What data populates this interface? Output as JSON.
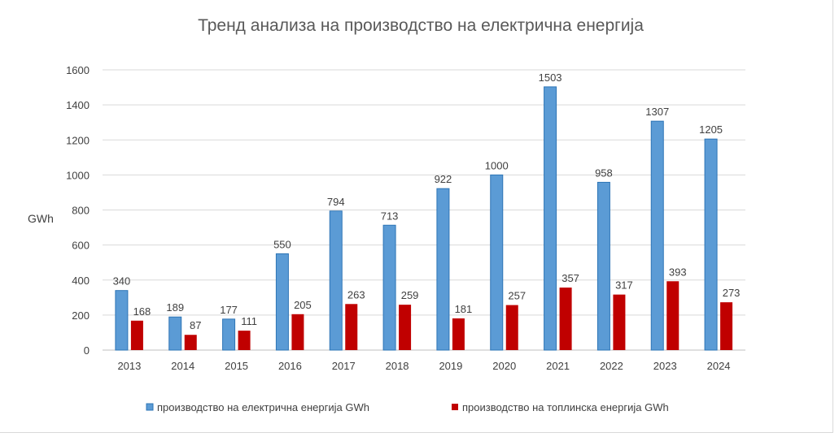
{
  "chart_data": {
    "type": "bar",
    "title": "Тренд анализа на производство на електрична енергија",
    "ylabel": "GWh",
    "xlabel": "",
    "ylim": [
      0,
      1600
    ],
    "yticks": [
      0,
      200,
      400,
      600,
      800,
      1000,
      1200,
      1400,
      1600
    ],
    "grid": true,
    "legend_position": "bottom",
    "categories": [
      "2013",
      "2014",
      "2015",
      "2016",
      "2017",
      "2018",
      "2019",
      "2020",
      "2021",
      "2022",
      "2023",
      "2024"
    ],
    "series": [
      {
        "name": "производство на електрична енергија GWh",
        "color": "#5b9bd5",
        "values": [
          340,
          189,
          177,
          550,
          794,
          713,
          922,
          1000,
          1503,
          958,
          1307,
          1205
        ]
      },
      {
        "name": "производство на топлинска енергија GWh",
        "color": "#c00000",
        "values": [
          168,
          87,
          111,
          205,
          263,
          259,
          181,
          257,
          357,
          317,
          393,
          273
        ]
      }
    ]
  }
}
